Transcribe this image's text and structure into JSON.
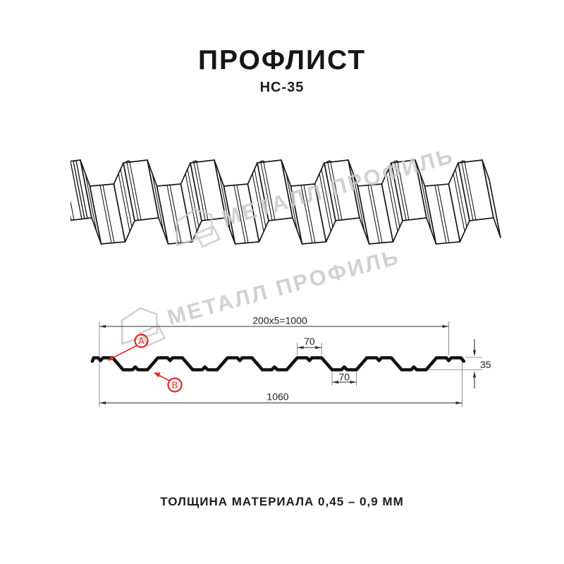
{
  "doc": {
    "title": "ПРОФЛИСТ",
    "subtitle": "НС-35",
    "note": "ТОЛЩИНА МАТЕРИАЛА 0,45 – 0,9 ММ"
  },
  "watermark": {
    "text": "МЕТАЛЛ ПРОФИЛЬ",
    "color": "#c9c9c9"
  },
  "diagram": {
    "product": "профлист НС-35",
    "dimensions": {
      "pitch_label": "200x5=1000",
      "crest_width_label": "70",
      "valley_width_label": "70",
      "height_label": "35",
      "total_width_label": "1060"
    },
    "markers": {
      "a": "A",
      "b": "B"
    },
    "colors": {
      "drawing_line": "#1a1a1a",
      "profile_line": "#111111",
      "dimension_line": "#333333",
      "extension_line": "#909090",
      "accent_red": "#e8251f"
    }
  }
}
